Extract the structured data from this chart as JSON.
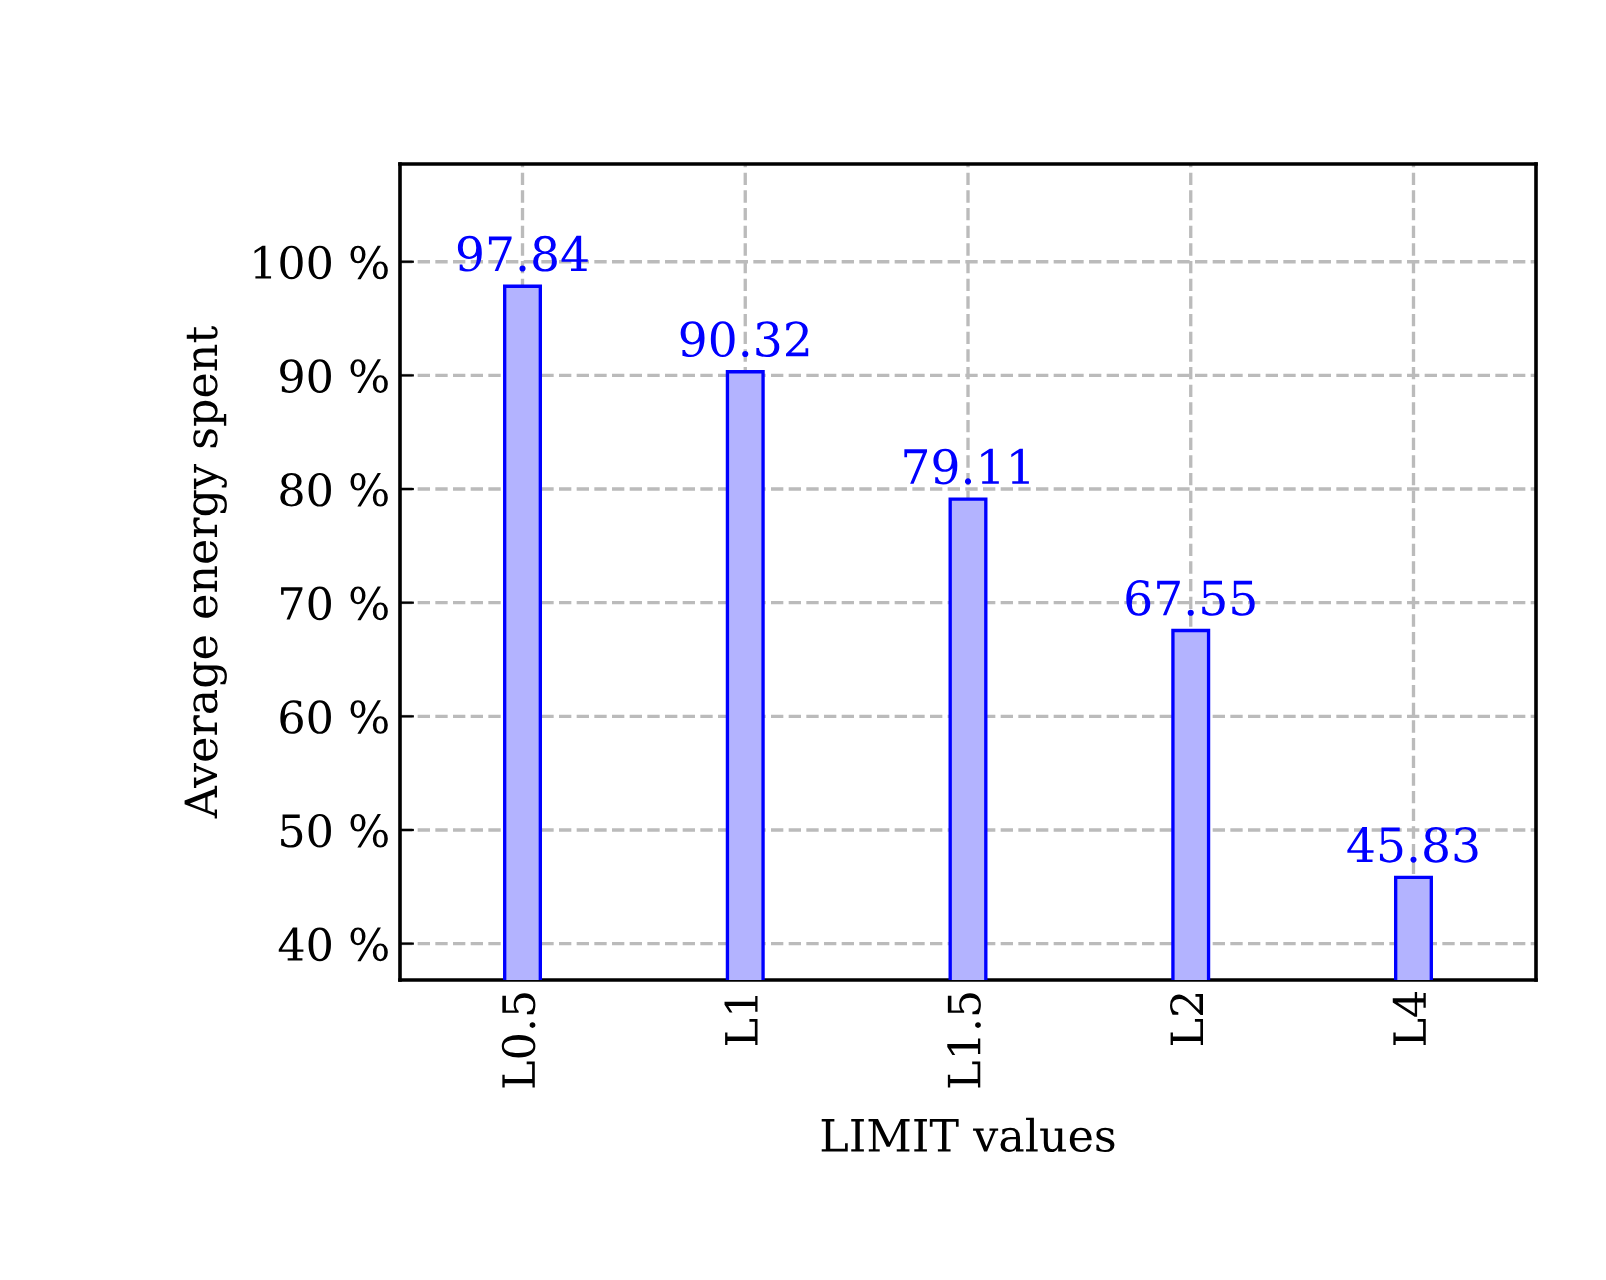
{
  "chart_data": {
    "type": "bar",
    "xlabel": "LIMIT values",
    "ylabel": "Average energy spent",
    "categories": [
      "L0.5",
      "L1",
      "L1.5",
      "L2",
      "L4"
    ],
    "values": [
      97.84,
      90.32,
      79.11,
      67.55,
      45.83
    ],
    "color": "#b3b3ff",
    "ylim": [
      36.8,
      108.6
    ],
    "yticks": [
      {
        "value": 40,
        "label": "40 %"
      },
      {
        "value": 50,
        "label": "50 %"
      },
      {
        "value": 60,
        "label": "60 %"
      },
      {
        "value": 70,
        "label": "70 %"
      },
      {
        "value": 80,
        "label": "80 %"
      },
      {
        "value": 90,
        "label": "90 %"
      },
      {
        "value": 100,
        "label": "100 %"
      }
    ],
    "grid": true,
    "data_labels": true,
    "line_style": "dashed"
  }
}
